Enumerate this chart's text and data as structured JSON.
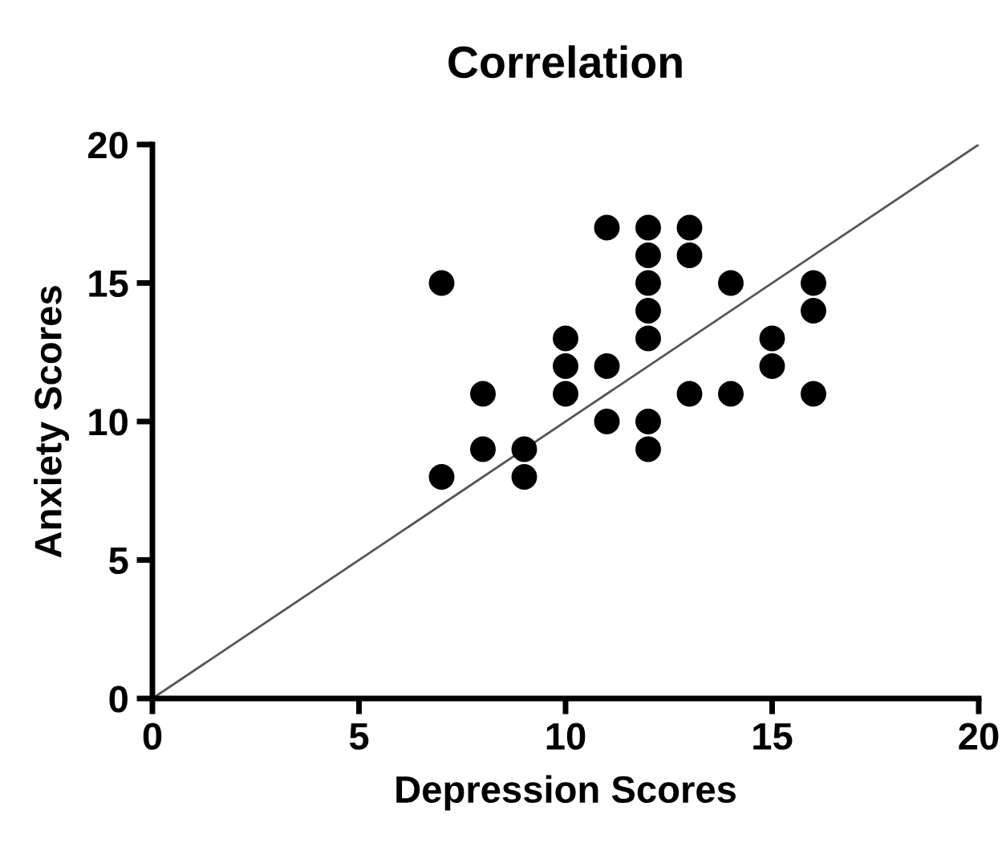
{
  "chart_data": {
    "type": "scatter",
    "title": "Correlation",
    "xlabel": "Depression Scores",
    "ylabel": "Anxiety Scores",
    "xlim": [
      0,
      20
    ],
    "ylim": [
      0,
      20
    ],
    "xticks": [
      0,
      5,
      10,
      15,
      20
    ],
    "yticks": [
      0,
      5,
      10,
      15,
      20
    ],
    "grid": false,
    "series": [
      {
        "marker": "circle",
        "color": "#000000",
        "x": [
          7,
          7,
          8,
          8,
          9,
          9,
          10,
          10,
          10,
          11,
          11,
          11,
          12,
          12,
          12,
          12,
          12,
          12,
          12,
          13,
          13,
          13,
          14,
          14,
          15,
          15,
          16,
          16,
          16
        ],
        "values": [
          15,
          8,
          11,
          9,
          9,
          8,
          13,
          12,
          11,
          17,
          12,
          10,
          17,
          16,
          15,
          14,
          13,
          10,
          9,
          17,
          16,
          11,
          15,
          11,
          13,
          12,
          15,
          14,
          11
        ]
      },
      {
        "type": "line",
        "color": "#555555",
        "x": [
          0,
          20
        ],
        "values": [
          0,
          20
        ]
      }
    ]
  }
}
